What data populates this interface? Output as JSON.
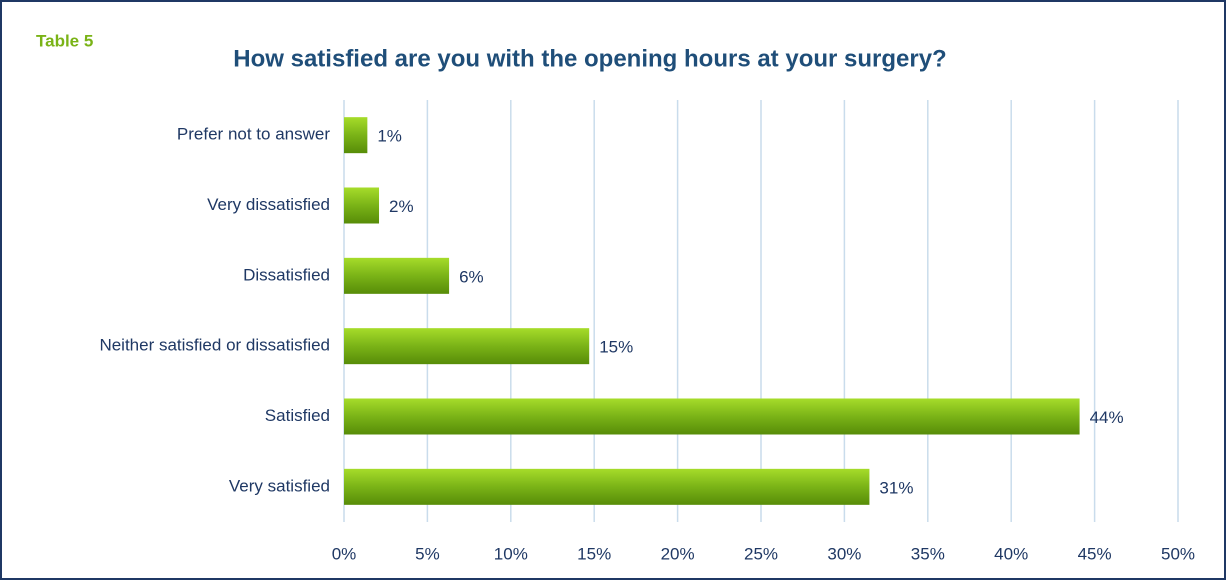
{
  "chart_data": {
    "type": "hbar",
    "title": "How satisfied are you with the opening hours at your surgery?",
    "annotations": [
      "Table 5"
    ],
    "categories": [
      "Prefer not to answer",
      "Very dissatisfied",
      "Dissatisfied",
      "Neither satisfied or dissatisfied",
      "Satisfied",
      "Very satisfied"
    ],
    "values": [
      1.4,
      2.1,
      6.3,
      14.7,
      44.1,
      31.5
    ],
    "value_labels": [
      "1%",
      "2%",
      "6%",
      "15%",
      "44%",
      "31%"
    ],
    "color": "#7ab317",
    "xlim": [
      0,
      50
    ],
    "xticks": [
      {
        "value": 0,
        "label": "0%"
      },
      {
        "value": 5,
        "label": "5%"
      },
      {
        "value": 10,
        "label": "10%"
      },
      {
        "value": 15,
        "label": "15%"
      },
      {
        "value": 20,
        "label": "20%"
      },
      {
        "value": 25,
        "label": "25%"
      },
      {
        "value": 30,
        "label": "30%"
      },
      {
        "value": 35,
        "label": "35%"
      },
      {
        "value": 40,
        "label": "40%"
      },
      {
        "value": 45,
        "label": "45%"
      },
      {
        "value": 50,
        "label": "50%"
      }
    ],
    "grid": true
  }
}
